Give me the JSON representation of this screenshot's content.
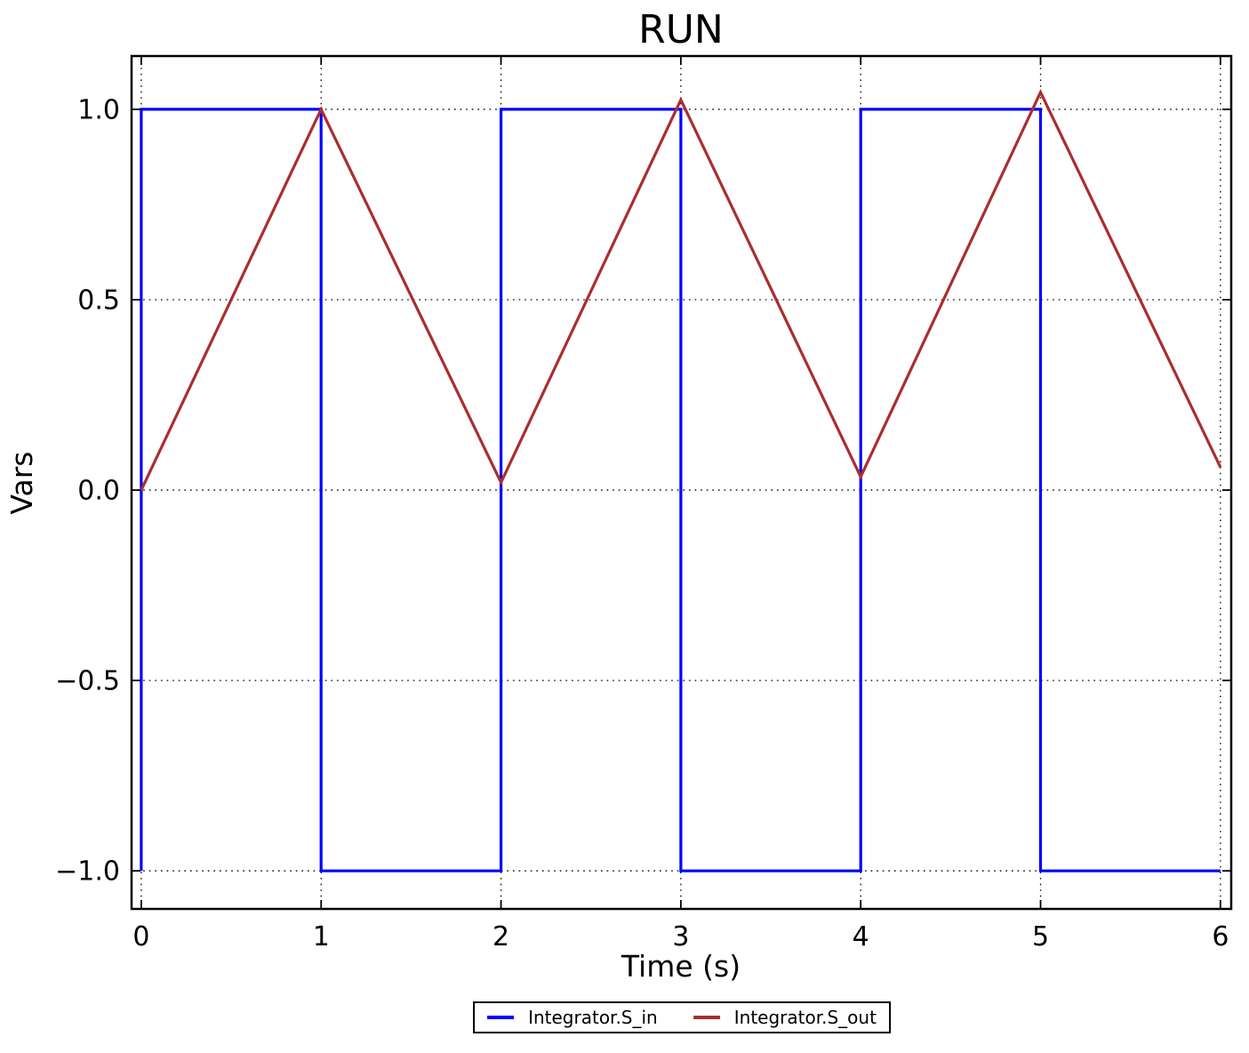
{
  "title": "RUN",
  "colors": {
    "background": "#ffffff",
    "grid": "#000000",
    "spine": "#000000",
    "s_in": "#0000ff",
    "s_out": "#aa2e2e"
  },
  "chart_data": {
    "type": "line",
    "title": "RUN",
    "xlabel": "Time (s)",
    "ylabel": "Vars",
    "xlim": [
      -0.054,
      6.06
    ],
    "ylim": [
      -1.1,
      1.14
    ],
    "xticks": [
      0,
      1,
      2,
      3,
      4,
      5,
      6
    ],
    "xticklabels": [
      "0",
      "1",
      "2",
      "3",
      "4",
      "5",
      "6"
    ],
    "yticks": [
      -1.0,
      -0.5,
      0.0,
      0.5,
      1.0
    ],
    "yticklabels": [
      "−1.0",
      "−0.5",
      "0.0",
      "0.5",
      "1.0"
    ],
    "grid": "dotted",
    "legend_position": "bottom-center-outside",
    "series": [
      {
        "name": "Integrator.S_in",
        "color": "#0000ff",
        "points": [
          [
            0,
            -1
          ],
          [
            0,
            1
          ],
          [
            1,
            1
          ],
          [
            1,
            -1
          ],
          [
            2,
            -1
          ],
          [
            2,
            1
          ],
          [
            3,
            1
          ],
          [
            3,
            -1
          ],
          [
            4,
            -1
          ],
          [
            4,
            1
          ],
          [
            5,
            1
          ],
          [
            5,
            -1
          ],
          [
            6,
            -1
          ]
        ]
      },
      {
        "name": "Integrator.S_out",
        "color": "#aa2e2e",
        "points": [
          [
            0,
            0
          ],
          [
            1,
            1.0
          ],
          [
            2,
            0.02
          ],
          [
            3,
            1.025
          ],
          [
            4,
            0.035
          ],
          [
            5,
            1.045
          ],
          [
            6,
            0.06
          ]
        ]
      }
    ]
  },
  "legend": {
    "items": [
      {
        "label": "Integrator.S_in",
        "color": "#0000ff"
      },
      {
        "label": "Integrator.S_out",
        "color": "#aa2e2e"
      }
    ]
  }
}
